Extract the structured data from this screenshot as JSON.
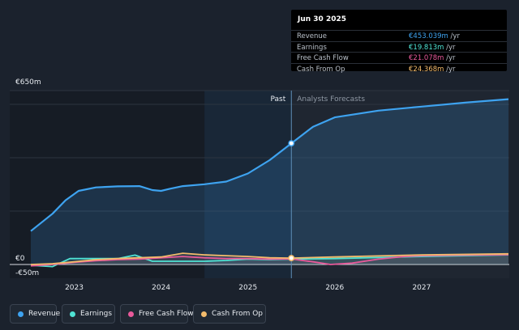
{
  "colors": {
    "revenue": "#3ea3f0",
    "earnings": "#4fe3d4",
    "fcf": "#e8599a",
    "cfo": "#f3bb6c"
  },
  "tooltip": {
    "date": "Jun 30 2025",
    "rows": [
      {
        "label": "Revenue",
        "value": "€453.039m",
        "unit": "/yr",
        "color": "#3ea3f0"
      },
      {
        "label": "Earnings",
        "value": "€19.813m",
        "unit": "/yr",
        "color": "#4fe3d4"
      },
      {
        "label": "Free Cash Flow",
        "value": "€21.078m",
        "unit": "/yr",
        "color": "#e8599a"
      },
      {
        "label": "Cash From Op",
        "value": "€24.368m",
        "unit": "/yr",
        "color": "#f3bb6c"
      }
    ]
  },
  "legend": [
    {
      "label": "Revenue",
      "color": "#3ea3f0"
    },
    {
      "label": "Earnings",
      "color": "#4fe3d4"
    },
    {
      "label": "Free Cash Flow",
      "color": "#e8599a"
    },
    {
      "label": "Cash From Op",
      "color": "#f3bb6c"
    }
  ],
  "chart_data": {
    "type": "line",
    "y_tick_labels": [
      "€650m",
      "€0",
      "-€50m"
    ],
    "ylim": [
      -50,
      650
    ],
    "x_tick_labels": [
      "2023",
      "2024",
      "2025",
      "2026",
      "2027"
    ],
    "x_ticks": [
      2023.0,
      2024.0,
      2025.0,
      2026.0,
      2027.0
    ],
    "xlim": [
      2022.5,
      2028.0
    ],
    "past_label": "Past",
    "forecast_label": "Analysts Forecasts",
    "divider_x": 2025.5,
    "highlight_start_x": 2024.5,
    "grid": true,
    "series": [
      {
        "name": "Revenue",
        "color": "#3ea3f0",
        "area": true,
        "x": [
          2022.5,
          2022.75,
          2022.9,
          2023.05,
          2023.25,
          2023.5,
          2023.75,
          2023.9,
          2024.0,
          2024.1,
          2024.25,
          2024.5,
          2024.75,
          2025.0,
          2025.25,
          2025.5,
          2025.75,
          2026.0,
          2026.5,
          2027.0,
          2027.5,
          2028.0
        ],
        "y": [
          125,
          190,
          240,
          275,
          288,
          292,
          293,
          278,
          275,
          283,
          293,
          300,
          310,
          340,
          390,
          453,
          515,
          550,
          575,
          590,
          605,
          618
        ]
      },
      {
        "name": "Earnings",
        "color": "#4fe3d4",
        "area": false,
        "x": [
          2022.5,
          2022.75,
          2022.95,
          2023.25,
          2023.5,
          2023.7,
          2023.9,
          2024.25,
          2024.5,
          2024.75,
          2025.0,
          2025.25,
          2025.5,
          2026.0,
          2026.5,
          2027.0,
          2028.0
        ],
        "y": [
          -3,
          -8,
          22,
          22,
          22,
          35,
          12,
          12,
          12,
          15,
          20,
          18,
          20,
          22,
          26,
          30,
          36
        ]
      },
      {
        "name": "Free Cash Flow",
        "color": "#e8599a",
        "area": false,
        "x": [
          2022.5,
          2022.75,
          2023.0,
          2023.25,
          2023.5,
          2023.75,
          2024.0,
          2024.25,
          2024.5,
          2024.75,
          2025.0,
          2025.25,
          2025.5,
          2025.75,
          2025.95,
          2026.2,
          2026.5,
          2026.8,
          2027.0,
          2027.5,
          2028.0
        ],
        "y": [
          -5,
          0,
          8,
          14,
          18,
          20,
          25,
          30,
          25,
          22,
          22,
          20,
          21,
          10,
          0,
          5,
          20,
          30,
          33,
          35,
          37
        ]
      },
      {
        "name": "Cash From Op",
        "color": "#f3bb6c",
        "area": false,
        "x": [
          2022.5,
          2022.75,
          2023.0,
          2023.25,
          2023.5,
          2023.75,
          2024.0,
          2024.25,
          2024.5,
          2024.75,
          2025.0,
          2025.25,
          2025.5,
          2026.0,
          2026.5,
          2027.0,
          2028.0
        ],
        "y": [
          0,
          3,
          10,
          18,
          22,
          25,
          28,
          42,
          36,
          33,
          30,
          25,
          24,
          28,
          32,
          36,
          40
        ]
      }
    ]
  }
}
